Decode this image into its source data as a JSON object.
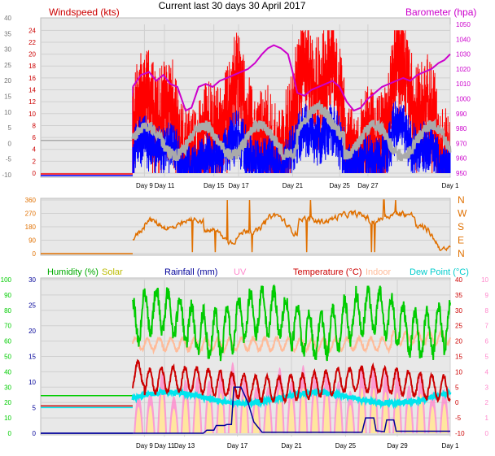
{
  "title": "Current last 30 days 30 April 2017",
  "colors": {
    "wind": "#ff0000",
    "gust_label": "#cc0000",
    "avg": "#0000ff",
    "bar": "#cc00cc",
    "dir": "#e07000",
    "hum": "#00cc00",
    "solar": "#cccc00",
    "rain": "#000099",
    "uv": "#ff88cc",
    "temp": "#cc0000",
    "indoor": "#ffbb99",
    "dew": "#00e5ee",
    "label_dark": "#333333",
    "plot_bg": "#e8e8e8"
  },
  "x_ticks_top": [
    "Day 9",
    "Day 11",
    "Day 15",
    "Day 17",
    "Day 21",
    "Day 25",
    "Day 27",
    "Day 1"
  ],
  "x_ticks_bottom": [
    "Day 9",
    "Day 11",
    "Day 13",
    "Day 17",
    "Day 21",
    "Day 25",
    "Day 29",
    "Day 1"
  ],
  "chart_data": [
    {
      "type": "line",
      "name": "wind-barometer",
      "left_label": "Windspeed (kts)",
      "right_label": "Barometer (hpa)",
      "left_ticks": [
        "24",
        "22",
        "20",
        "18",
        "16",
        "14",
        "12",
        "10",
        "8",
        "6",
        "4",
        "2",
        "0"
      ],
      "outer_left_ticks": [
        "40",
        "35",
        "30",
        "25",
        "20",
        "15",
        "10",
        "5",
        "0",
        "-5",
        "-10"
      ],
      "right_ticks": [
        "1050",
        "1040",
        "1030",
        "1020",
        "1010",
        "1000",
        "990",
        "980",
        "970",
        "960",
        "950"
      ],
      "ylim_left": [
        0,
        25
      ],
      "ylim_right": [
        950,
        1050
      ],
      "baseline_value": 0,
      "gray_baseline": 5.5,
      "barometer": [
        [
          0,
          1008
        ],
        [
          0.7,
          1016
        ],
        [
          1.4,
          1018
        ],
        [
          2.0,
          1012
        ],
        [
          2.6,
          1016
        ],
        [
          3.2,
          1010
        ],
        [
          3.8,
          1008
        ],
        [
          4.5,
          992
        ],
        [
          5.0,
          994
        ],
        [
          5.6,
          1008
        ],
        [
          6.2,
          1010
        ],
        [
          6.8,
          1008
        ],
        [
          7.4,
          1012
        ],
        [
          8.0,
          1014
        ],
        [
          8.6,
          1016
        ],
        [
          9.2,
          1018
        ],
        [
          9.8,
          1020
        ],
        [
          10.4,
          1024
        ],
        [
          11.0,
          1030
        ],
        [
          11.5,
          1034
        ],
        [
          12.0,
          1036
        ],
        [
          12.6,
          1034
        ],
        [
          13.2,
          1030
        ],
        [
          13.6,
          1018
        ],
        [
          14.0,
          1004
        ],
        [
          14.6,
          1002
        ],
        [
          15.2,
          1006
        ],
        [
          15.8,
          1008
        ],
        [
          16.4,
          1010
        ],
        [
          17.0,
          1012
        ],
        [
          17.6,
          1008
        ],
        [
          18.2,
          998
        ],
        [
          18.8,
          992
        ],
        [
          19.4,
          994
        ],
        [
          20.0,
          1000
        ],
        [
          20.6,
          1004
        ],
        [
          21.2,
          1008
        ],
        [
          21.8,
          1010
        ],
        [
          22.4,
          1012
        ],
        [
          23.0,
          1014
        ],
        [
          23.6,
          1012
        ],
        [
          24.2,
          1016
        ],
        [
          24.8,
          1018
        ],
        [
          25.4,
          1020
        ],
        [
          26.0,
          1024
        ],
        [
          26.5,
          1026
        ],
        [
          27.0,
          1030
        ]
      ]
    },
    {
      "type": "line",
      "name": "wind-direction",
      "left_ticks": [
        "360",
        "270",
        "180",
        "90",
        "0"
      ],
      "right_labels": [
        "N",
        "W",
        "S",
        "E",
        "N"
      ],
      "ylim": [
        0,
        360
      ]
    },
    {
      "type": "line",
      "name": "weather",
      "legend": [
        "Humidity (%)",
        "Solar",
        "Rainfall (mm)",
        "UV",
        "Temperature (°C)",
        "Indoor",
        "Dew Point (°C)"
      ],
      "humidity_ticks": [
        "100",
        "90",
        "80",
        "70",
        "60",
        "50",
        "40",
        "30",
        "20",
        "10",
        "0"
      ],
      "rain_ticks": [
        "30",
        "25",
        "20",
        "15",
        "10",
        "5",
        "0"
      ],
      "temp_ticks": [
        "40",
        "35",
        "30",
        "25",
        "20",
        "15",
        "10",
        "5",
        "0",
        "-5",
        "-10"
      ],
      "uv_ticks": [
        "10",
        "9",
        "8",
        "7",
        "6",
        "5",
        "4",
        "3",
        "2",
        "1",
        "0"
      ],
      "ylim_temp": [
        -10,
        40
      ],
      "ylim_humidity": [
        0,
        100
      ],
      "ylim_rain": [
        0,
        30
      ],
      "pre_period": {
        "humidity": 24.5,
        "temperature": -1.1,
        "dew_point": -1.1,
        "rain": 0
      },
      "rain_cumulative": [
        [
          0,
          0
        ],
        [
          6.0,
          0
        ],
        [
          6.3,
          0.6
        ],
        [
          6.9,
          0.6
        ],
        [
          7.1,
          1.5
        ],
        [
          7.8,
          1.5
        ],
        [
          8.0,
          1.7
        ],
        [
          8.4,
          1.7
        ],
        [
          8.6,
          9.0
        ],
        [
          9.2,
          9.0
        ],
        [
          9.8,
          6.0
        ],
        [
          10.3,
          2.2
        ],
        [
          11.0,
          0.2
        ],
        [
          19.5,
          0.2
        ],
        [
          19.8,
          3.0
        ],
        [
          20.5,
          3.0
        ],
        [
          20.7,
          0.5
        ],
        [
          21.4,
          0.3
        ],
        [
          21.6,
          2.6
        ],
        [
          22.2,
          2.6
        ],
        [
          22.4,
          0.4
        ],
        [
          27.0,
          0.4
        ]
      ]
    }
  ]
}
